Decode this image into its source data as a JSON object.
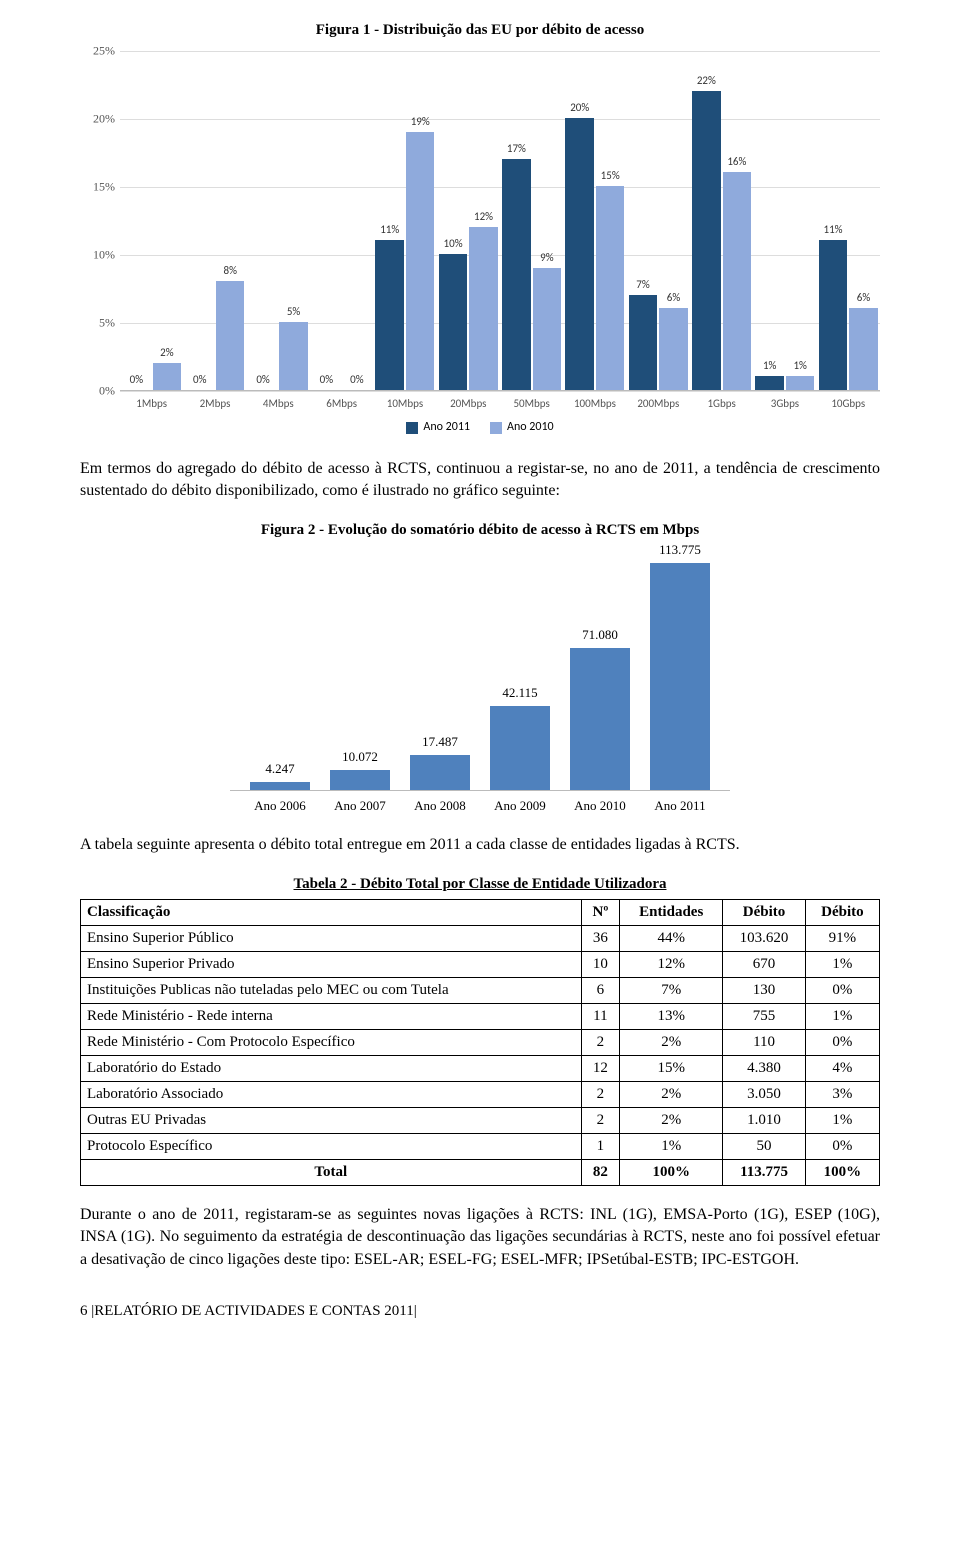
{
  "figure1": {
    "title": "Figura 1 - Distribuição das EU por débito de acesso",
    "type": "bar",
    "ymax": 25,
    "ytick_step": 5,
    "ytick_suffix": "%",
    "categories": [
      "1Mbps",
      "2Mbps",
      "4Mbps",
      "6Mbps",
      "10Mbps",
      "20Mbps",
      "50Mbps",
      "100Mbps",
      "200Mbps",
      "1Gbps",
      "3Gbps",
      "10Gbps"
    ],
    "series": [
      {
        "name": "Ano 2011",
        "color": "#1f4e79",
        "values": [
          0,
          0,
          0,
          0,
          11,
          10,
          17,
          20,
          7,
          22,
          1,
          11
        ],
        "labels": [
          "0%",
          "0%",
          "0%",
          "0%",
          "11%",
          "10%",
          "17%",
          "20%",
          "7%",
          "22%",
          "1%",
          "11%"
        ]
      },
      {
        "name": "Ano 2010",
        "color": "#8faadc",
        "values": [
          2,
          8,
          5,
          0,
          19,
          12,
          9,
          15,
          6,
          16,
          1,
          6
        ],
        "labels": [
          "2%",
          "8%",
          "5%",
          "0%",
          "19%",
          "12%",
          "9%",
          "15%",
          "6%",
          "16%",
          "1%",
          "6%"
        ]
      }
    ],
    "legend": [
      "Ano 2011",
      "Ano 2010"
    ]
  },
  "para1": "Em termos do agregado do débito de acesso à RCTS, continuou a registar-se, no ano de 2011, a tendência de crescimento sustentado do débito disponibilizado, como é ilustrado no gráfico seguinte:",
  "figure2": {
    "title": "Figura 2 - Evolução do somatório débito de acesso à RCTS em Mbps",
    "type": "bar",
    "ymax": 120,
    "color": "#4f81bd",
    "categories": [
      "Ano 2006",
      "Ano 2007",
      "Ano 2008",
      "Ano 2009",
      "Ano 2010",
      "Ano 2011"
    ],
    "values": [
      4.247,
      10.072,
      17.487,
      42.115,
      71.08,
      113.775
    ],
    "labels": [
      "4.247",
      "10.072",
      "17.487",
      "42.115",
      "71.080",
      "113.775"
    ]
  },
  "para2": "A tabela seguinte apresenta o débito total entregue em 2011 a cada classe de entidades ligadas à RCTS.",
  "table2": {
    "title": "Tabela 2 - Débito Total por Classe de Entidade Utilizadora",
    "columns": [
      "Classificação",
      "Nº",
      "Entidades",
      "Débito",
      "Débito"
    ],
    "rows": [
      [
        "Ensino Superior Público",
        "36",
        "44%",
        "103.620",
        "91%"
      ],
      [
        "Ensino Superior Privado",
        "10",
        "12%",
        "670",
        "1%"
      ],
      [
        "Instituições Publicas não tuteladas pelo MEC ou com Tutela",
        "6",
        "7%",
        "130",
        "0%"
      ],
      [
        "Rede Ministério - Rede interna",
        "11",
        "13%",
        "755",
        "1%"
      ],
      [
        "Rede Ministério - Com Protocolo Específico",
        "2",
        "2%",
        "110",
        "0%"
      ],
      [
        "Laboratório do Estado",
        "12",
        "15%",
        "4.380",
        "4%"
      ],
      [
        "Laboratório Associado",
        "2",
        "2%",
        "3.050",
        "3%"
      ],
      [
        "Outras EU Privadas",
        "2",
        "2%",
        "1.010",
        "1%"
      ],
      [
        "Protocolo Específico",
        "1",
        "1%",
        "50",
        "0%"
      ]
    ],
    "total_row": [
      "Total",
      "82",
      "100%",
      "113.775",
      "100%"
    ]
  },
  "para3": "Durante o ano de 2011, registaram-se as seguintes novas ligações à RCTS: INL (1G), EMSA-Porto (1G), ESEP (10G), INSA (1G). No seguimento da estratégia de descontinuação das ligações secundárias à RCTS, neste ano foi possível efetuar a desativação de cinco ligações deste tipo: ESEL-AR; ESEL-FG; ESEL-MFR; IPSetúbal-ESTB; IPC-ESTGOH.",
  "footer": "6 |RELATÓRIO DE ACTIVIDADES E CONTAS 2011|"
}
